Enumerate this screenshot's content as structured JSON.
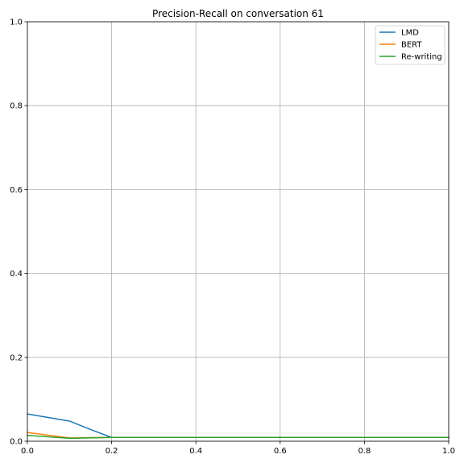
{
  "chart_data": {
    "type": "line",
    "title": "Precision-Recall on conversation 61",
    "xlabel": "",
    "ylabel": "",
    "xlim": [
      0,
      1
    ],
    "ylim": [
      0,
      1
    ],
    "x_ticks": [
      "0.0",
      "0.2",
      "0.4",
      "0.6",
      "0.8",
      "1.0"
    ],
    "y_ticks": [
      "0.0",
      "0.2",
      "0.4",
      "0.6",
      "0.8",
      "1.0"
    ],
    "grid": true,
    "legend_position": "top-right",
    "series": [
      {
        "name": "LMD",
        "color": "#1f77b4",
        "x": [
          0.0,
          0.1,
          0.15,
          0.2,
          0.3,
          0.4,
          0.5,
          0.6,
          0.7,
          0.8,
          0.9,
          1.0
        ],
        "y": [
          0.065,
          0.048,
          0.028,
          0.009,
          0.009,
          0.009,
          0.009,
          0.009,
          0.009,
          0.009,
          0.009,
          0.009
        ]
      },
      {
        "name": "BERT",
        "color": "#ff7f0e",
        "x": [
          0.0,
          0.1,
          0.2,
          0.3,
          0.4,
          0.5,
          0.6,
          0.7,
          0.8,
          0.9,
          1.0
        ],
        "y": [
          0.021,
          0.008,
          0.009,
          0.009,
          0.009,
          0.009,
          0.009,
          0.009,
          0.009,
          0.009,
          0.009
        ]
      },
      {
        "name": "Re-writing",
        "color": "#2ca02c",
        "x": [
          0.0,
          0.1,
          0.2,
          0.3,
          0.4,
          0.5,
          0.6,
          0.7,
          0.8,
          0.9,
          1.0
        ],
        "y": [
          0.014,
          0.007,
          0.009,
          0.009,
          0.009,
          0.009,
          0.009,
          0.009,
          0.009,
          0.009,
          0.009
        ]
      }
    ]
  }
}
